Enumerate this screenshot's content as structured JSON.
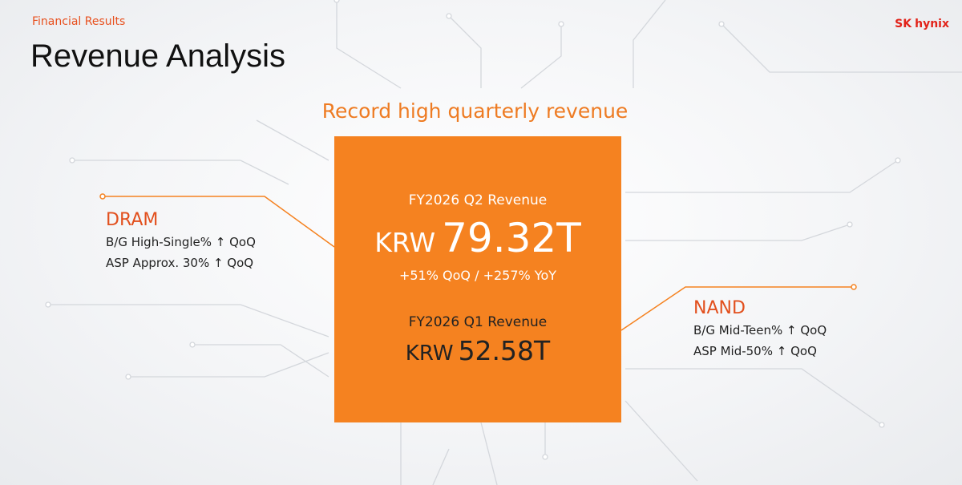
{
  "header": {
    "section": "Financial Results",
    "title": "Revenue Analysis",
    "logo": {
      "brand": "SK",
      "name": "hynix"
    }
  },
  "headline": "Record high quarterly revenue",
  "current": {
    "label": "FY2026 Q2 Revenue",
    "currency": "KRW",
    "amount": "79.32T",
    "growth": "+51% QoQ / +257% YoY"
  },
  "previous": {
    "label": "FY2026 Q1 Revenue",
    "currency": "KRW",
    "amount": "52.58T"
  },
  "segments": [
    {
      "name": "DRAM",
      "lines": [
        "B/G High-Single% ↑ QoQ",
        "ASP Approx. 30% ↑ QoQ"
      ]
    },
    {
      "name": "NAND",
      "lines": [
        "B/G Mid-Teen% ↑ QoQ",
        "ASP Mid-50% ↑ QoQ"
      ]
    }
  ]
}
